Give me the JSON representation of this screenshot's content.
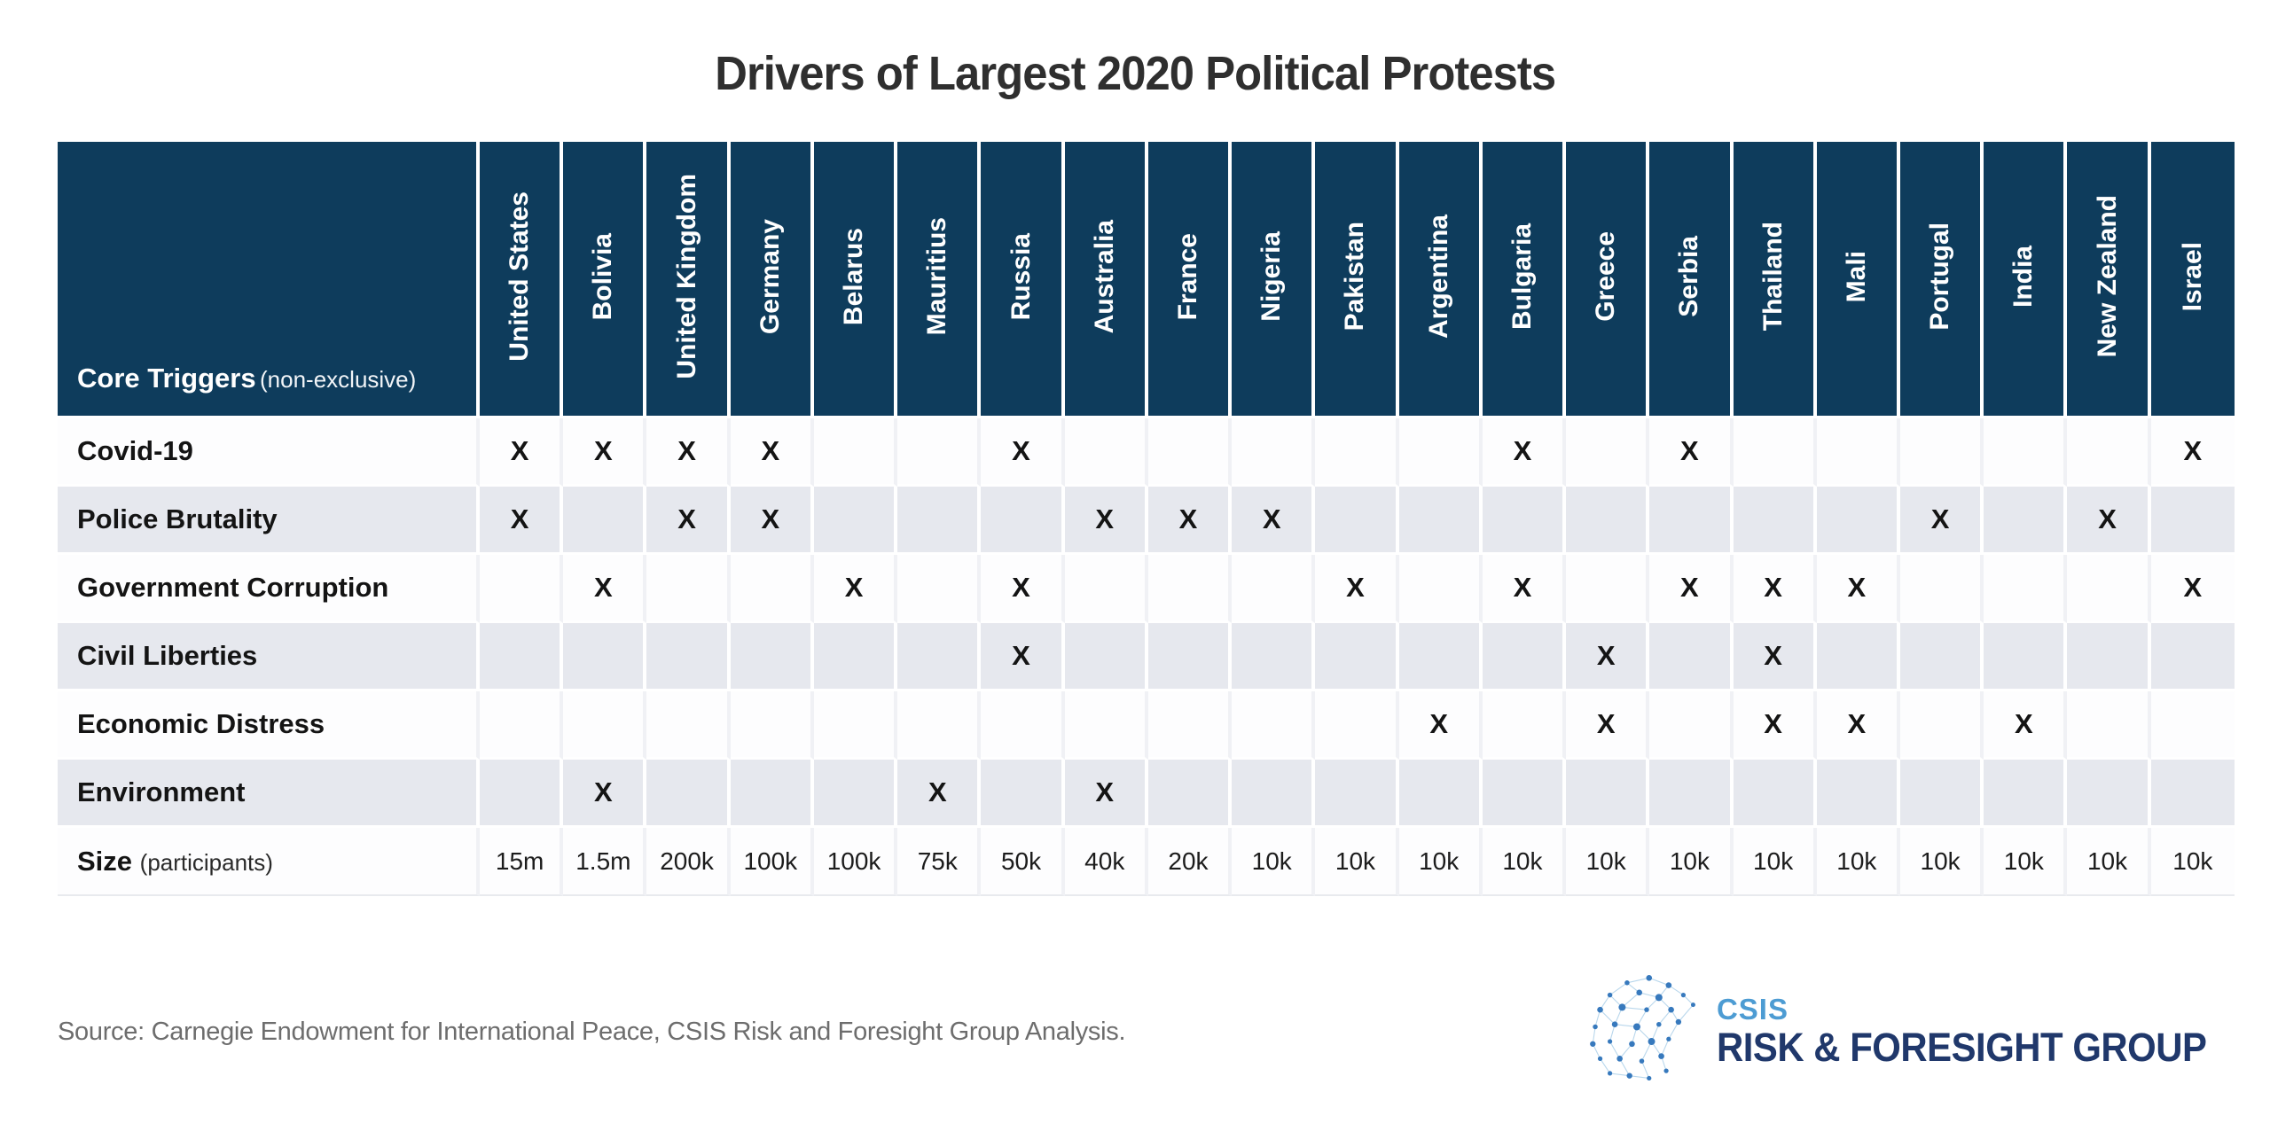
{
  "title": "Drivers of Largest 2020 Political Protests",
  "chart_data": {
    "type": "table",
    "title": "Drivers of Largest 2020 Political Protests",
    "mark_symbol": "X",
    "row_header": {
      "label": "Core Triggers",
      "note": "(non-exclusive)"
    },
    "columns": [
      "United States",
      "Bolivia",
      "United Kingdom",
      "Germany",
      "Belarus",
      "Mauritius",
      "Russia",
      "Australia",
      "France",
      "Nigeria",
      "Pakistan",
      "Argentina",
      "Bulgaria",
      "Greece",
      "Serbia",
      "Thailand",
      "Mali",
      "Portugal",
      "India",
      "New Zealand",
      "Israel"
    ],
    "rows": [
      {
        "label": "Covid-19",
        "marks": [
          "United States",
          "Bolivia",
          "United Kingdom",
          "Germany",
          "Russia",
          "Bulgaria",
          "Serbia",
          "Israel"
        ]
      },
      {
        "label": "Police Brutality",
        "marks": [
          "United States",
          "United Kingdom",
          "Germany",
          "Australia",
          "France",
          "Nigeria",
          "Portugal",
          "New Zealand"
        ]
      },
      {
        "label": "Government Corruption",
        "marks": [
          "Bolivia",
          "Belarus",
          "Russia",
          "Pakistan",
          "Bulgaria",
          "Serbia",
          "Thailand",
          "Mali",
          "Israel"
        ]
      },
      {
        "label": "Civil Liberties",
        "marks": [
          "Russia",
          "Greece",
          "Thailand"
        ]
      },
      {
        "label": "Economic Distress",
        "marks": [
          "Argentina",
          "Greece",
          "Thailand",
          "Mali",
          "India"
        ]
      },
      {
        "label": "Environment",
        "marks": [
          "Bolivia",
          "Mauritius",
          "Australia"
        ]
      }
    ],
    "size_row": {
      "label": "Size",
      "note": "(participants)",
      "values": [
        "15m",
        "1.5m",
        "200k",
        "100k",
        "100k",
        "75k",
        "50k",
        "40k",
        "20k",
        "10k",
        "10k",
        "10k",
        "10k",
        "10k",
        "10k",
        "10k",
        "10k",
        "10k",
        "10k",
        "10k",
        "10k"
      ]
    }
  },
  "footer": {
    "source": "Source: Carnegie Endowment for International Peace, CSIS Risk and Foresight Group Analysis.",
    "logo": {
      "org": "CSIS",
      "group": "RISK & FORESIGHT GROUP"
    }
  },
  "colors": {
    "header_blue": "#0e3c5c",
    "row_alt_gray": "#e6e8ee",
    "mark_color": "#141414",
    "title_color": "#2f2f2f",
    "source_gray": "#6d6d6d",
    "csis_light_blue": "#4d9cd3",
    "csis_navy": "#20386b"
  }
}
